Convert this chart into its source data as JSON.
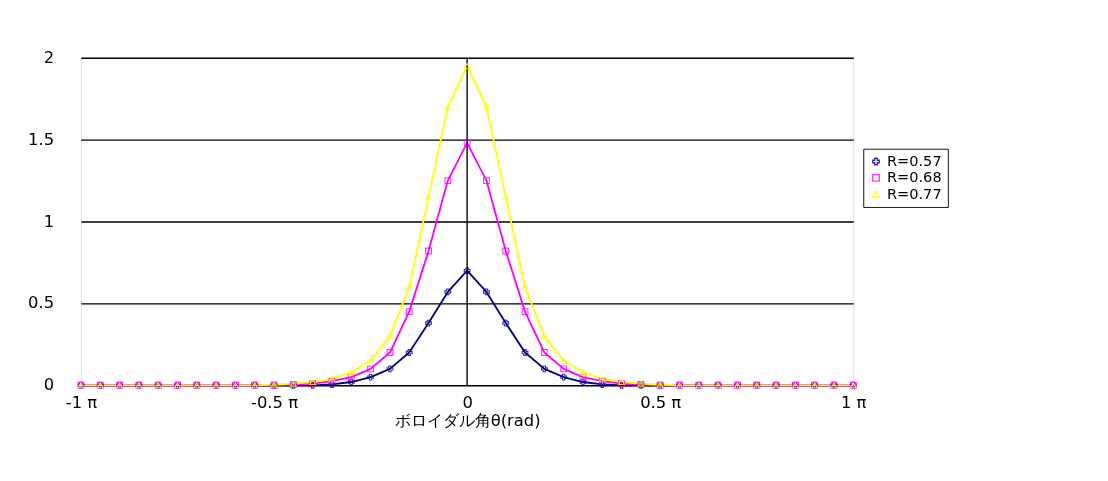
{
  "chart_data": {
    "type": "line",
    "xlabel": "ボロイダル角θ(rad)",
    "x": [
      -3.1416,
      -2.9845,
      -2.8274,
      -2.6704,
      -2.5133,
      -2.3562,
      -2.1991,
      -2.042,
      -1.885,
      -1.7279,
      -1.5708,
      -1.4137,
      -1.2566,
      -1.0996,
      -0.9425,
      -0.7854,
      -0.6283,
      -0.4712,
      -0.3142,
      -0.1571,
      0,
      0.1571,
      0.3142,
      0.4712,
      0.6283,
      0.7854,
      0.9425,
      1.0996,
      1.2566,
      1.4137,
      1.5708,
      1.7279,
      1.885,
      2.042,
      2.1991,
      2.3562,
      2.5133,
      2.6704,
      2.8274,
      2.9845,
      3.1416
    ],
    "series": [
      {
        "name": "R=0.57",
        "color": "#000080",
        "marker": "cross",
        "values": [
          0,
          0,
          0,
          0,
          0,
          0,
          0,
          0,
          0,
          0,
          0,
          0,
          0,
          0.005,
          0.02,
          0.05,
          0.1,
          0.2,
          0.38,
          0.57,
          0.7,
          0.57,
          0.38,
          0.2,
          0.1,
          0.05,
          0.02,
          0.005,
          0,
          0,
          0,
          0,
          0,
          0,
          0,
          0,
          0,
          0,
          0,
          0,
          0
        ]
      },
      {
        "name": "R=0.68",
        "color": "#ff00ff",
        "marker": "square",
        "values": [
          0,
          0,
          0,
          0,
          0,
          0,
          0,
          0,
          0,
          0,
          0,
          0.005,
          0.01,
          0.025,
          0.05,
          0.1,
          0.2,
          0.45,
          0.82,
          1.25,
          1.48,
          1.25,
          0.82,
          0.45,
          0.2,
          0.1,
          0.05,
          0.025,
          0.01,
          0.005,
          0,
          0,
          0,
          0,
          0,
          0,
          0,
          0,
          0,
          0,
          0
        ]
      },
      {
        "name": "R=0.77",
        "color": "#ffff00",
        "marker": "triangle",
        "values": [
          0,
          0,
          0,
          0,
          0,
          0,
          0,
          0,
          0,
          0,
          0.005,
          0.01,
          0.02,
          0.04,
          0.08,
          0.15,
          0.3,
          0.6,
          1.15,
          1.7,
          1.95,
          1.7,
          1.15,
          0.6,
          0.3,
          0.15,
          0.08,
          0.04,
          0.02,
          0.01,
          0.005,
          0,
          0,
          0,
          0,
          0,
          0,
          0,
          0,
          0,
          0
        ]
      }
    ],
    "xlim": [
      -3.1416,
      3.1416
    ],
    "xticks": [
      {
        "value": -3.1416,
        "label": "-1 π"
      },
      {
        "value": -1.5708,
        "label": "-0.5 π"
      },
      0,
      {
        "value": 1.5708,
        "label": "0.5 π"
      },
      {
        "value": 3.1416,
        "label": "1 π"
      }
    ],
    "ylim": [
      0,
      2
    ],
    "yticks": [
      0,
      0.5,
      1,
      1.5,
      2
    ],
    "ref_lines": [
      {
        "axis": "x",
        "value": 0,
        "color": "#000000"
      }
    ],
    "grid": "y",
    "legend": "right"
  }
}
